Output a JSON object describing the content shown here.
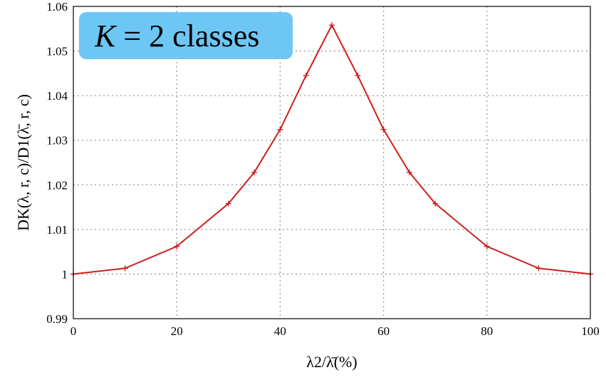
{
  "chart_data": {
    "type": "line",
    "title": "",
    "xlabel": "λ2/λ̄(%)",
    "ylabel": "DK(λ, r, c)/D1(λ̄, r, c)",
    "xlim": [
      0,
      100
    ],
    "ylim": [
      0.99,
      1.06
    ],
    "x_ticks": [
      0,
      20,
      40,
      60,
      80,
      100
    ],
    "y_ticks": [
      0.99,
      1,
      1.01,
      1.02,
      1.03,
      1.04,
      1.05,
      1.06
    ],
    "x_tick_labels": [
      "0",
      "20",
      "40",
      "60",
      "80",
      "100"
    ],
    "y_tick_labels": [
      "0.99",
      "1",
      "1.01",
      "1.02",
      "1.03",
      "1.04",
      "1.05",
      "1.06"
    ],
    "grid": true,
    "series": [
      {
        "color": "#cc1f1f",
        "marker": "plus",
        "x": [
          0,
          10,
          20,
          30,
          35,
          40,
          45,
          50,
          55,
          60,
          65,
          70,
          80,
          90,
          100
        ],
        "y": [
          1.0,
          1.0013,
          1.0062,
          1.0158,
          1.0228,
          1.0324,
          1.0445,
          1.0558,
          1.0445,
          1.0324,
          1.0228,
          1.0158,
          1.0062,
          1.0013,
          1.0
        ]
      }
    ],
    "annotations": [
      {
        "text_k": "K",
        "text_eq": " = 2 classes",
        "background": "#6ec6f5",
        "placement": "top-left"
      }
    ]
  }
}
